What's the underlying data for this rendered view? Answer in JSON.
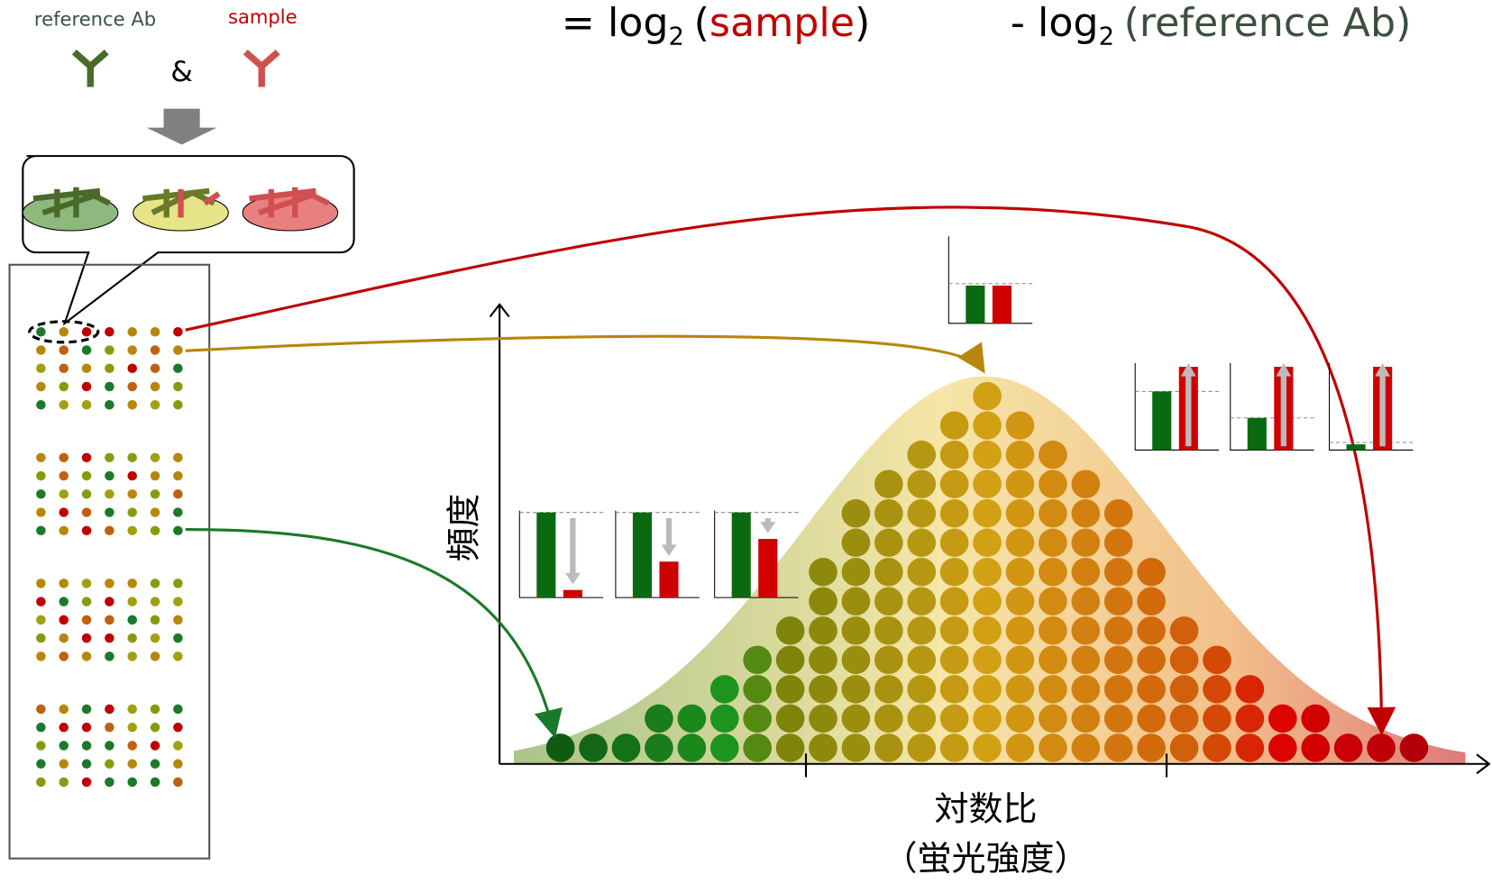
{
  "legend": {
    "reference": "reference Ab",
    "sample": "sample",
    "and": "&"
  },
  "formula": {
    "equals": "=",
    "log": "log",
    "base": "2",
    "open": "(",
    "close": ")",
    "minus": "-",
    "sample": "sample",
    "reference": "reference Ab"
  },
  "axes": {
    "y_label": "頻度",
    "x_label": "対数比",
    "x_sublabel": "（蛍光強度）"
  }
}
